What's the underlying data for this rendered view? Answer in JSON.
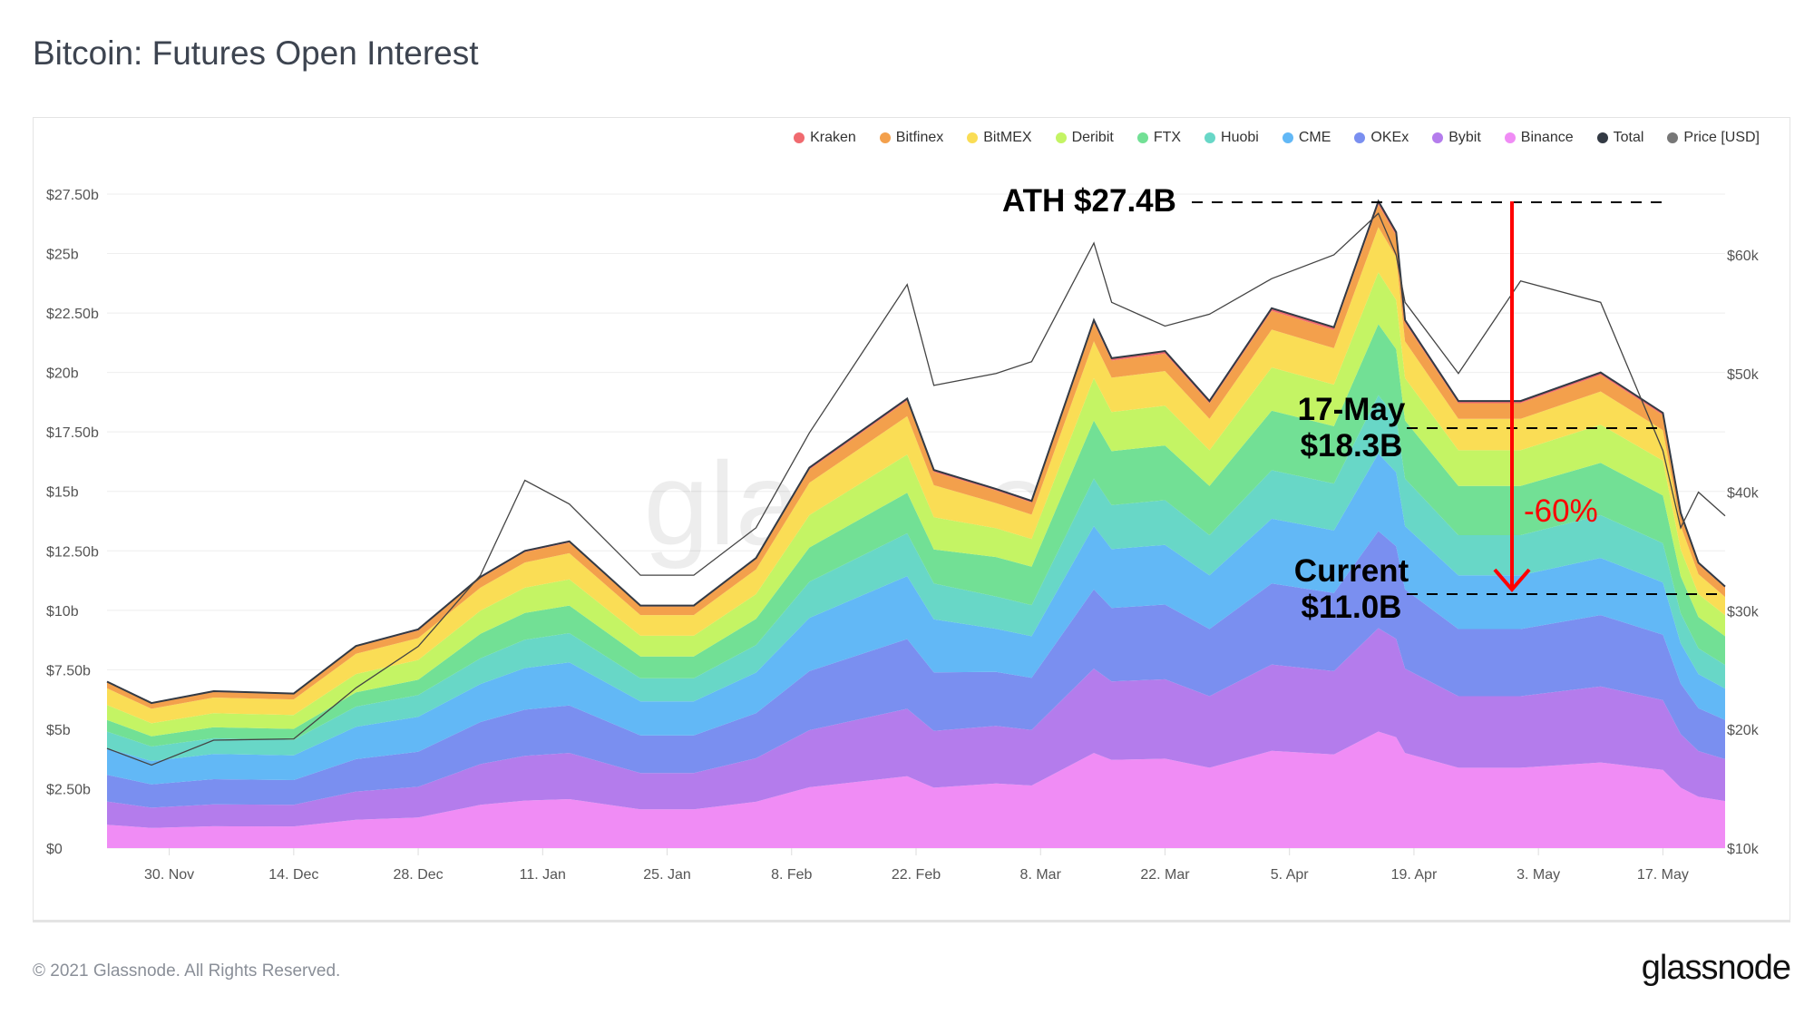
{
  "title": "Bitcoin: Futures Open Interest",
  "footer": "© 2021 Glassnode. All Rights Reserved.",
  "logo": "glassnode",
  "watermark": "glassnode",
  "annotations": {
    "ath": "ATH $27.4B",
    "may17_line1": "17-May",
    "may17_line2": "$18.3B",
    "current_line1": "Current",
    "current_line2": "$11.0B",
    "drop": "-60%"
  },
  "chart_data": {
    "type": "area",
    "stacked": true,
    "title": "Bitcoin: Futures Open Interest",
    "legend_position": "top-right",
    "grid": true,
    "ylim": [
      0,
      27.5
    ],
    "y2lim": [
      10000,
      64000
    ],
    "y_ticks": [
      {
        "v": 0,
        "label": "$0"
      },
      {
        "v": 2.5,
        "label": "$2.50b"
      },
      {
        "v": 5,
        "label": "$5b"
      },
      {
        "v": 7.5,
        "label": "$7.50b"
      },
      {
        "v": 10,
        "label": "$10b"
      },
      {
        "v": 12.5,
        "label": "$12.50b"
      },
      {
        "v": 15,
        "label": "$15b"
      },
      {
        "v": 17.5,
        "label": "$17.50b"
      },
      {
        "v": 20,
        "label": "$20b"
      },
      {
        "v": 22.5,
        "label": "$22.50b"
      },
      {
        "v": 25,
        "label": "$25b"
      },
      {
        "v": 27.5,
        "label": "$27.50b"
      }
    ],
    "y2_ticks": [
      {
        "v": 10000,
        "label": "$10k"
      },
      {
        "v": 20000,
        "label": "$20k"
      },
      {
        "v": 30000,
        "label": "$30k"
      },
      {
        "v": 40000,
        "label": "$40k"
      },
      {
        "v": 50000,
        "label": "$50k"
      },
      {
        "v": 60000,
        "label": "$60k"
      }
    ],
    "x_ticks": [
      {
        "date": "2020-11-30",
        "label": "30. Nov"
      },
      {
        "date": "2020-12-14",
        "label": "14. Dec"
      },
      {
        "date": "2020-12-28",
        "label": "28. Dec"
      },
      {
        "date": "2021-01-11",
        "label": "11. Jan"
      },
      {
        "date": "2021-01-25",
        "label": "25. Jan"
      },
      {
        "date": "2021-02-08",
        "label": "8. Feb"
      },
      {
        "date": "2021-02-22",
        "label": "22. Feb"
      },
      {
        "date": "2021-03-08",
        "label": "8. Mar"
      },
      {
        "date": "2021-03-22",
        "label": "22. Mar"
      },
      {
        "date": "2021-04-05",
        "label": "5. Apr"
      },
      {
        "date": "2021-04-19",
        "label": "19. Apr"
      },
      {
        "date": "2021-05-03",
        "label": "3. May"
      },
      {
        "date": "2021-05-17",
        "label": "17. May"
      }
    ],
    "x": [
      "2020-11-23",
      "2020-11-28",
      "2020-12-05",
      "2020-12-14",
      "2020-12-21",
      "2020-12-28",
      "2021-01-04",
      "2021-01-09",
      "2021-01-14",
      "2021-01-22",
      "2021-01-28",
      "2021-02-04",
      "2021-02-10",
      "2021-02-21",
      "2021-02-24",
      "2021-03-03",
      "2021-03-07",
      "2021-03-14",
      "2021-03-16",
      "2021-03-22",
      "2021-03-27",
      "2021-04-03",
      "2021-04-10",
      "2021-04-15",
      "2021-04-17",
      "2021-04-18",
      "2021-04-24",
      "2021-05-01",
      "2021-05-10",
      "2021-05-17",
      "2021-05-19",
      "2021-05-21",
      "2021-05-24"
    ],
    "series": [
      {
        "name": "Kraken",
        "color": "#f06a6f",
        "values": [
          0.04,
          0.03,
          0.03,
          0.03,
          0.04,
          0.05,
          0.06,
          0.06,
          0.06,
          0.05,
          0.05,
          0.06,
          0.08,
          0.09,
          0.08,
          0.08,
          0.07,
          0.11,
          0.1,
          0.1,
          0.09,
          0.11,
          0.11,
          0.14,
          0.13,
          0.11,
          0.09,
          0.09,
          0.1,
          0.09,
          0.07,
          0.06,
          0.06
        ]
      },
      {
        "name": "Bitfinex",
        "color": "#f3a04c",
        "values": [
          0.25,
          0.21,
          0.23,
          0.23,
          0.3,
          0.32,
          0.4,
          0.44,
          0.45,
          0.36,
          0.36,
          0.43,
          0.56,
          0.66,
          0.56,
          0.53,
          0.51,
          0.78,
          0.72,
          0.73,
          0.66,
          0.79,
          0.77,
          0.95,
          0.91,
          0.78,
          0.66,
          0.66,
          0.7,
          0.64,
          0.49,
          0.42,
          0.39
        ]
      },
      {
        "name": "BitMEX",
        "color": "#fadd55",
        "values": [
          0.7,
          0.61,
          0.66,
          0.65,
          0.85,
          0.92,
          0.97,
          1.06,
          1.1,
          0.87,
          0.87,
          1.04,
          1.36,
          1.61,
          1.35,
          1.06,
          1.02,
          1.55,
          1.44,
          1.46,
          1.32,
          1.59,
          1.53,
          1.9,
          1.81,
          1.55,
          1.32,
          1.32,
          1.4,
          1.28,
          0.99,
          0.84,
          0.77
        ]
      },
      {
        "name": "Deribit",
        "color": "#c4f464",
        "values": [
          0.63,
          0.55,
          0.59,
          0.59,
          0.77,
          0.83,
          0.97,
          1.06,
          1.1,
          0.87,
          0.87,
          1.04,
          1.36,
          1.61,
          1.35,
          1.21,
          1.17,
          1.78,
          1.65,
          1.67,
          1.5,
          1.82,
          1.75,
          2.18,
          2.07,
          1.78,
          1.5,
          1.5,
          1.6,
          1.46,
          1.13,
          0.96,
          0.88
        ]
      },
      {
        "name": "FTX",
        "color": "#72e095",
        "values": [
          0.49,
          0.43,
          0.46,
          0.46,
          0.6,
          0.64,
          1.03,
          1.13,
          1.16,
          0.92,
          0.92,
          1.1,
          1.44,
          1.7,
          1.43,
          1.66,
          1.61,
          2.44,
          2.27,
          2.3,
          2.07,
          2.5,
          2.41,
          2.99,
          2.85,
          2.44,
          2.07,
          2.07,
          2.2,
          2.01,
          1.55,
          1.32,
          1.21
        ]
      },
      {
        "name": "Huobi",
        "color": "#68d7c7",
        "values": [
          0.7,
          0.61,
          0.66,
          0.65,
          0.85,
          0.92,
          1.08,
          1.19,
          1.23,
          0.97,
          0.97,
          1.16,
          1.52,
          1.8,
          1.51,
          1.36,
          1.31,
          2.0,
          1.85,
          1.88,
          1.69,
          2.04,
          1.97,
          2.45,
          2.33,
          2.0,
          1.69,
          1.69,
          1.8,
          1.65,
          1.27,
          1.08,
          0.99
        ]
      },
      {
        "name": "CME",
        "color": "#62b8f6",
        "values": [
          1.12,
          0.98,
          1.06,
          1.04,
          1.36,
          1.47,
          1.6,
          1.75,
          1.81,
          1.43,
          1.43,
          1.71,
          2.24,
          2.65,
          2.23,
          1.81,
          1.75,
          2.66,
          2.47,
          2.51,
          2.26,
          2.72,
          2.63,
          3.26,
          3.11,
          2.66,
          2.26,
          2.26,
          2.4,
          2.2,
          1.69,
          1.44,
          1.32
        ]
      },
      {
        "name": "OKEx",
        "color": "#7a8ff0",
        "values": [
          1.12,
          0.98,
          1.06,
          1.04,
          1.36,
          1.47,
          1.77,
          1.94,
          2.0,
          1.58,
          1.58,
          1.89,
          2.48,
          2.93,
          2.46,
          2.27,
          2.19,
          3.33,
          3.09,
          3.14,
          2.82,
          3.41,
          3.29,
          4.08,
          3.89,
          3.33,
          2.82,
          2.82,
          3.0,
          2.75,
          2.12,
          1.8,
          1.65
        ]
      },
      {
        "name": "Bybit",
        "color": "#b47cec",
        "values": [
          0.98,
          0.85,
          0.92,
          0.91,
          1.19,
          1.29,
          1.71,
          1.88,
          1.94,
          1.53,
          1.53,
          1.83,
          2.4,
          2.84,
          2.39,
          2.42,
          2.34,
          3.55,
          3.3,
          3.34,
          3.01,
          3.63,
          3.5,
          4.35,
          4.14,
          3.55,
          3.01,
          3.01,
          3.2,
          2.93,
          2.26,
          1.92,
          1.76
        ]
      },
      {
        "name": "Binance",
        "color": "#f08cf5",
        "values": [
          0.98,
          0.85,
          0.92,
          0.91,
          1.19,
          1.29,
          1.82,
          2.0,
          2.06,
          1.63,
          1.63,
          1.95,
          2.56,
          3.02,
          2.54,
          2.72,
          2.63,
          4.0,
          3.71,
          3.76,
          3.38,
          4.09,
          3.94,
          4.9,
          4.66,
          4.0,
          3.38,
          3.38,
          3.6,
          3.29,
          2.54,
          2.16,
          1.98
        ]
      }
    ],
    "total": {
      "name": "Total",
      "color": "#333a44",
      "values": [
        7.0,
        6.1,
        6.6,
        6.5,
        8.5,
        9.2,
        11.4,
        12.5,
        12.9,
        10.2,
        10.2,
        12.2,
        16.0,
        18.9,
        15.9,
        15.1,
        14.6,
        22.2,
        20.6,
        20.9,
        18.8,
        22.7,
        21.9,
        27.2,
        25.9,
        22.2,
        18.8,
        18.8,
        20.0,
        18.3,
        14.1,
        12.0,
        11.0
      ]
    },
    "price": {
      "name": "Price [USD]",
      "color": "#777777",
      "values": [
        18400,
        17000,
        19100,
        19200,
        23500,
        27000,
        33000,
        41000,
        39000,
        33000,
        33000,
        37000,
        45000,
        57500,
        49000,
        50000,
        51000,
        61000,
        56000,
        54000,
        55000,
        58000,
        60000,
        63500,
        60000,
        56000,
        50000,
        57800,
        56000,
        43500,
        37000,
        40000,
        38000
      ]
    },
    "reference_lines": [
      {
        "label": "ATH $27.4B",
        "value": 27.4
      },
      {
        "label": "17-May $18.3B",
        "value": 18.3
      },
      {
        "label": "Current $11.0B",
        "value": 11.0
      }
    ],
    "change_label": "-60%"
  }
}
